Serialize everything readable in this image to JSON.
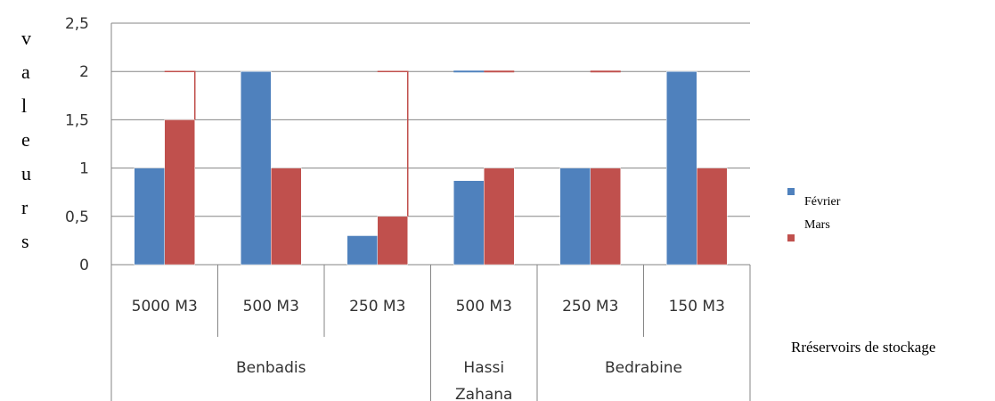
{
  "chart_data": {
    "type": "bar",
    "ylabel": "valeurs",
    "xlabel": "Rréservoirs de stockage",
    "ylim": [
      0,
      2.5
    ],
    "yticks": [
      "0",
      "0,5",
      "1",
      "1,5",
      "2",
      "2,5"
    ],
    "ytick_values": [
      0,
      0.5,
      1,
      1.5,
      2,
      2.5
    ],
    "categories": [
      "5000 M3",
      "500 M3",
      "250 M3",
      "500 M3",
      "250 M3",
      "150 M3"
    ],
    "groups": [
      {
        "label": "Benbadis",
        "count": 3
      },
      {
        "label": "Hassi Zahana",
        "count": 1
      },
      {
        "label": "Bedrabine",
        "count": 2
      }
    ],
    "series": [
      {
        "name": "Février",
        "color": "#4f81bd",
        "values": [
          1,
          2,
          0.3,
          0.87,
          1,
          2
        ]
      },
      {
        "name": "Mars",
        "color": "#c0504d",
        "values": [
          1.5,
          1,
          0.5,
          1,
          1,
          1
        ]
      }
    ],
    "grid": true,
    "legend_position": "right"
  }
}
